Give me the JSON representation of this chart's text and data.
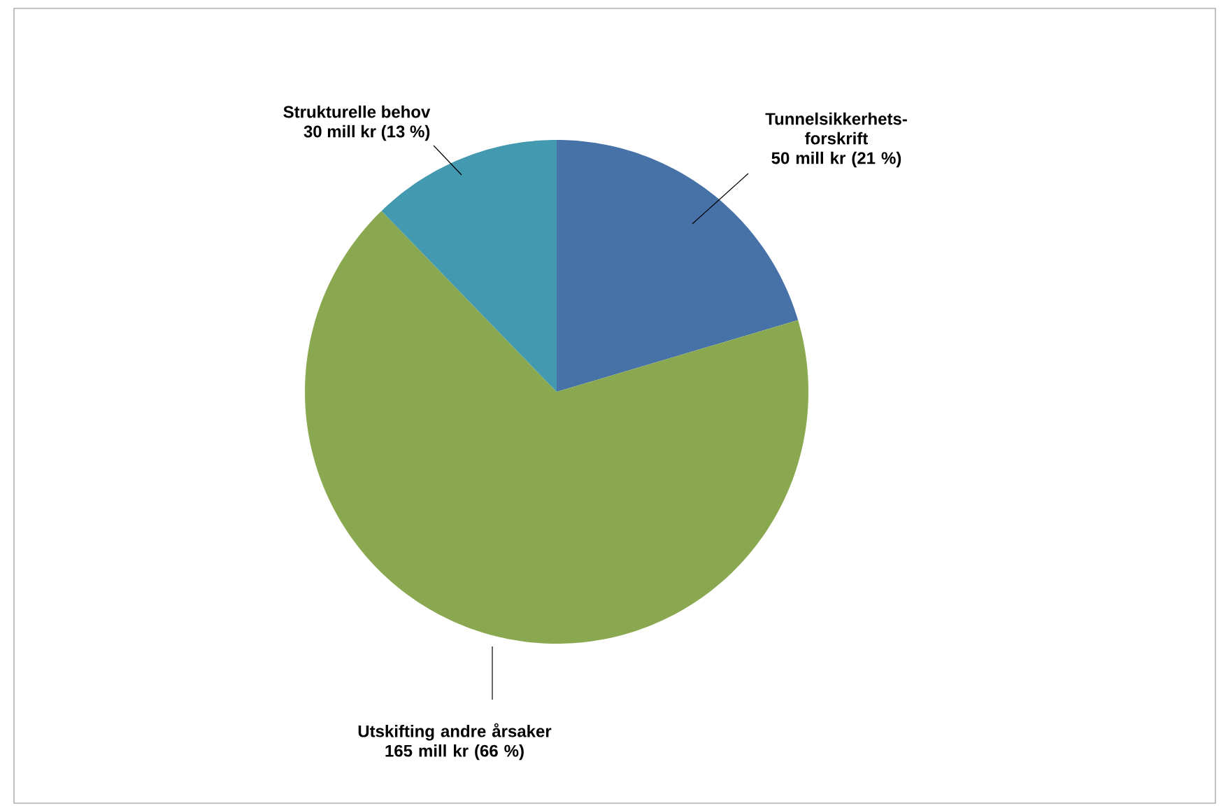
{
  "chart_data": {
    "type": "pie",
    "categories": [
      "Tunnelsikkerhets-forskrift",
      "Utskifting andre årsaker",
      "Strukturelle behov"
    ],
    "values": [
      50,
      165,
      30
    ],
    "value_labels": [
      "50 mill kr (21 %)",
      "165 mill kr (66 %)",
      "30 mill kr (13 %)"
    ],
    "colors": [
      "#4672a8",
      "#8aa84f",
      "#4399b0"
    ],
    "legend": false
  }
}
